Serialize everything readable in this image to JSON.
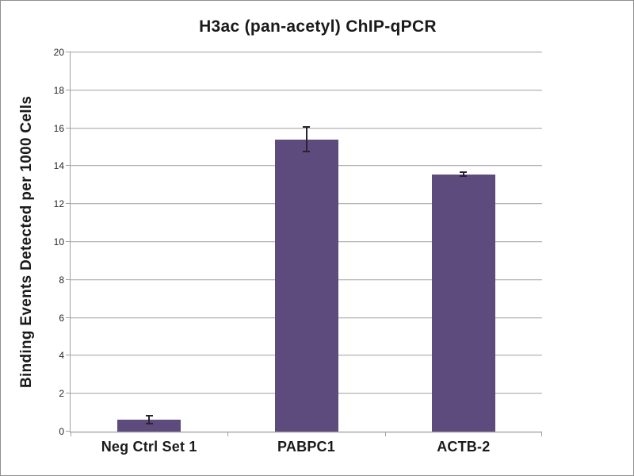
{
  "chart_data": {
    "type": "bar",
    "title": "H3ac (pan-acetyl) ChIP-qPCR",
    "xlabel": "",
    "ylabel": "Binding Events Detected per 1000 Cells",
    "categories": [
      "Neg Ctrl Set 1",
      "PABPC1",
      "ACTB-2"
    ],
    "values": [
      0.63,
      15.4,
      13.57
    ],
    "error_bars": [
      0.22,
      0.65,
      0.1
    ],
    "ylim": [
      0,
      20
    ],
    "ytick_step": 2,
    "yticks": [
      0,
      2,
      4,
      6,
      8,
      10,
      12,
      14,
      16,
      18,
      20
    ],
    "grid": true,
    "legend": false,
    "bar_color": "#5e4b7d",
    "error_bar_color": "#26242e",
    "gridline_color": "#b5b5b5",
    "axis_color": "#a0a0a0",
    "text_color": "#1a1a1a",
    "background_color": "#ffffff"
  }
}
